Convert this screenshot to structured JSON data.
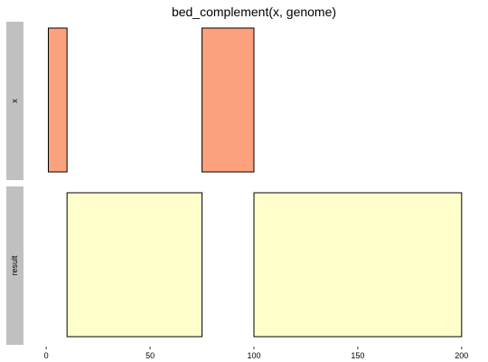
{
  "chart_data": {
    "type": "bar",
    "title": "bed_complement(x, genome)",
    "xlabel": "",
    "ylabel": "",
    "xlim": [
      -4,
      204
    ],
    "x_ticks": [
      0,
      50,
      100,
      150,
      200
    ],
    "grid": false,
    "legend": "none",
    "panels": [
      {
        "label": "x",
        "fill": "#FCA17D",
        "intervals": [
          {
            "start": 1,
            "end": 10
          },
          {
            "start": 75,
            "end": 100
          }
        ]
      },
      {
        "label": "result",
        "fill": "#FFFFCC",
        "intervals": [
          {
            "start": 10,
            "end": 75
          },
          {
            "start": 100,
            "end": 200
          }
        ]
      }
    ],
    "strip_color": "#C0C0C0",
    "border_color": "#000000"
  }
}
